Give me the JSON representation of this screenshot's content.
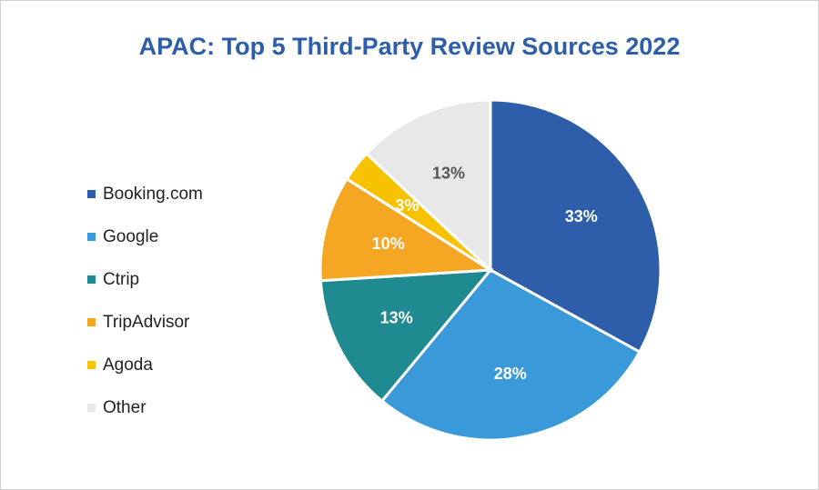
{
  "chart_data": {
    "type": "pie",
    "title": "APAC: Top 5 Third-Party Review Sources 2022",
    "legend_position": "left",
    "slices": [
      {
        "label": "Booking.com",
        "value": 33,
        "display": "33%",
        "color": "#2E5EAA",
        "label_color": "#ffffff"
      },
      {
        "label": "Google",
        "value": 28,
        "display": "28%",
        "color": "#3A9AD9",
        "label_color": "#ffffff"
      },
      {
        "label": "Ctrip",
        "value": 13,
        "display": "13%",
        "color": "#1F8A8F",
        "label_color": "#ffffff"
      },
      {
        "label": "TripAdvisor",
        "value": 10,
        "display": "10%",
        "color": "#F5A623",
        "label_color": "#ffffff"
      },
      {
        "label": "Agoda",
        "value": 3,
        "display": "3%",
        "color": "#F7C200",
        "label_color": "#ffffff"
      },
      {
        "label": "Other",
        "value": 13,
        "display": "13%",
        "color": "#E8E8E8",
        "label_color": "#555555"
      }
    ]
  }
}
